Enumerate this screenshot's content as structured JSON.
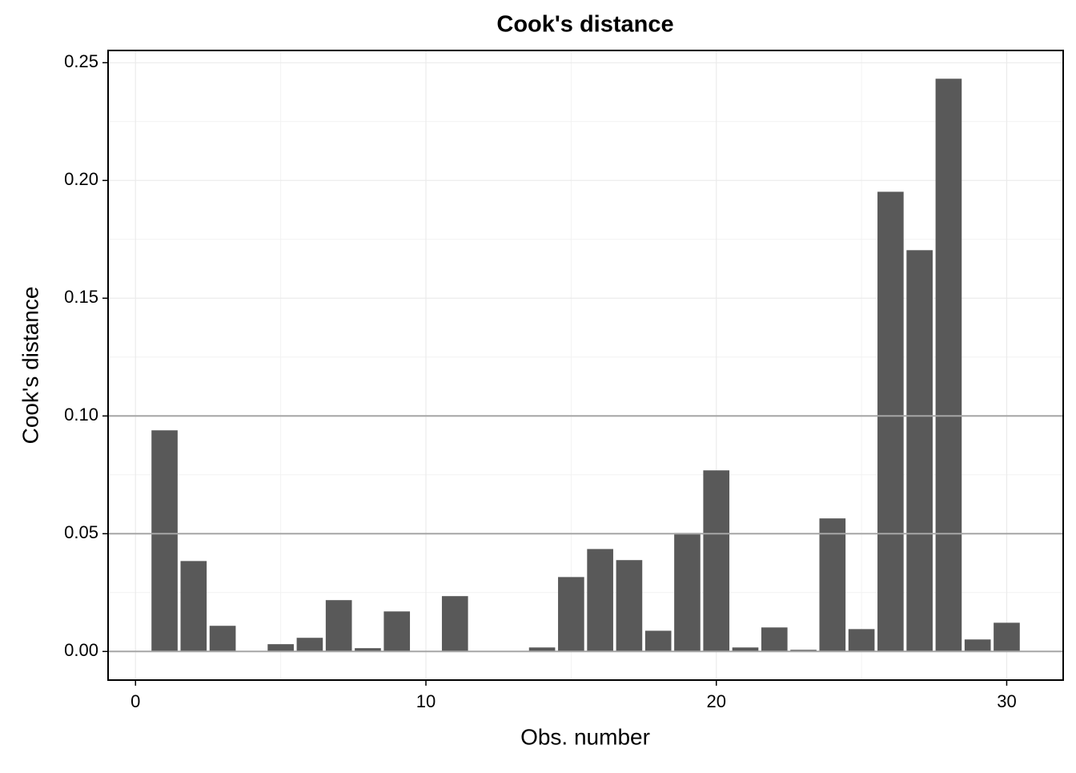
{
  "chart_data": {
    "type": "bar",
    "title": "Cook's distance",
    "x_label": "Obs. number",
    "y_label": "Cook's distance",
    "x": [
      1,
      2,
      3,
      4,
      5,
      6,
      7,
      8,
      9,
      10,
      11,
      12,
      13,
      14,
      15,
      16,
      17,
      18,
      19,
      20,
      21,
      22,
      23,
      24,
      25,
      26,
      27,
      28,
      29,
      30
    ],
    "values": [
      0.0939,
      0.0384,
      0.0109,
      0,
      0.0031,
      0.0058,
      0.0218,
      0.0014,
      0.017,
      0,
      0.0235,
      0,
      0,
      0.0017,
      0.0316,
      0.0435,
      0.0388,
      0.0088,
      0.0503,
      0.0769,
      0.0017,
      0.0102,
      0.0007,
      0.0565,
      0.0095,
      0.1952,
      0.1704,
      0.2432,
      0.0051,
      0.0122
    ],
    "color": "#595959",
    "xlim": [
      -0.945,
      31.945
    ],
    "xticks": [
      0,
      10,
      20,
      30
    ],
    "ylim": [
      -0.01215,
      0.2552
    ],
    "yticks": [
      {
        "value": 0,
        "label": "0.00"
      },
      {
        "value": 0.05,
        "label": "0.05"
      },
      {
        "value": 0.1,
        "label": "0.10"
      },
      {
        "value": 0.15,
        "label": "0.15"
      },
      {
        "value": 0.2,
        "label": "0.20"
      },
      {
        "value": 0.25,
        "label": "0.25"
      }
    ],
    "hlines": [
      0,
      0.05,
      0.1
    ],
    "grid": true
  }
}
